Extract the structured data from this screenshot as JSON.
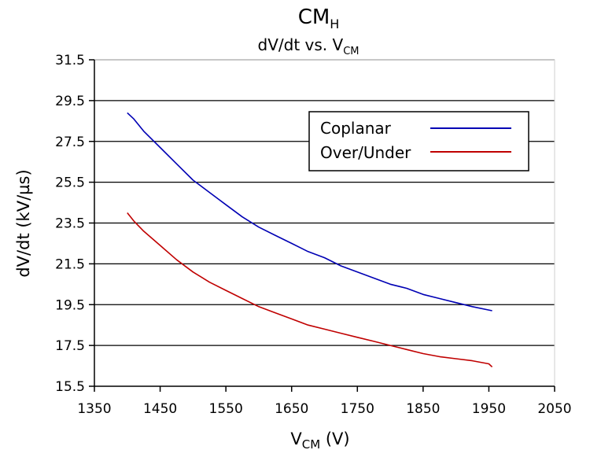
{
  "chart_data": {
    "type": "line",
    "title": "CM",
    "title_sub": "H",
    "subtitle": "dV/dt  vs. V",
    "subtitle_sub": "CM",
    "xlabel": "V",
    "xlabel_sub": "CM",
    "xlabel_unit": " (V)",
    "ylabel": "dV/dt  (kV/µs)",
    "xlim": [
      1350,
      2050
    ],
    "ylim": [
      15.5,
      31.5
    ],
    "xticks": [
      "1350",
      "1450",
      "1550",
      "1650",
      "1750",
      "1850",
      "1950",
      "2050"
    ],
    "yticks": [
      "15.5",
      "17.5",
      "19.5",
      "21.5",
      "23.5",
      "25.5",
      "27.5",
      "29.5",
      "31.5"
    ],
    "grid": "horizontal",
    "legend_position": "top-right",
    "series": [
      {
        "name": "Coplanar",
        "color": "#0000b4",
        "x": [
          1400,
          1410,
          1425,
          1450,
          1475,
          1500,
          1525,
          1550,
          1575,
          1600,
          1625,
          1650,
          1675,
          1700,
          1725,
          1750,
          1775,
          1800,
          1825,
          1850,
          1875,
          1900,
          1925,
          1955
        ],
        "y": [
          28.9,
          28.6,
          28.0,
          27.2,
          26.4,
          25.6,
          25.0,
          24.4,
          23.8,
          23.3,
          22.9,
          22.5,
          22.1,
          21.8,
          21.4,
          21.1,
          20.8,
          20.5,
          20.3,
          20.0,
          19.8,
          19.6,
          19.4,
          19.2
        ]
      },
      {
        "name": "Over/Under",
        "color": "#c00000",
        "x": [
          1400,
          1410,
          1425,
          1450,
          1475,
          1500,
          1525,
          1550,
          1575,
          1600,
          1625,
          1650,
          1675,
          1700,
          1725,
          1750,
          1775,
          1800,
          1825,
          1850,
          1875,
          1900,
          1925,
          1950,
          1955
        ],
        "y": [
          24.0,
          23.6,
          23.1,
          22.4,
          21.7,
          21.1,
          20.6,
          20.2,
          19.8,
          19.4,
          19.1,
          18.8,
          18.5,
          18.3,
          18.1,
          17.9,
          17.7,
          17.5,
          17.3,
          17.1,
          16.95,
          16.85,
          16.75,
          16.6,
          16.45
        ]
      }
    ]
  }
}
